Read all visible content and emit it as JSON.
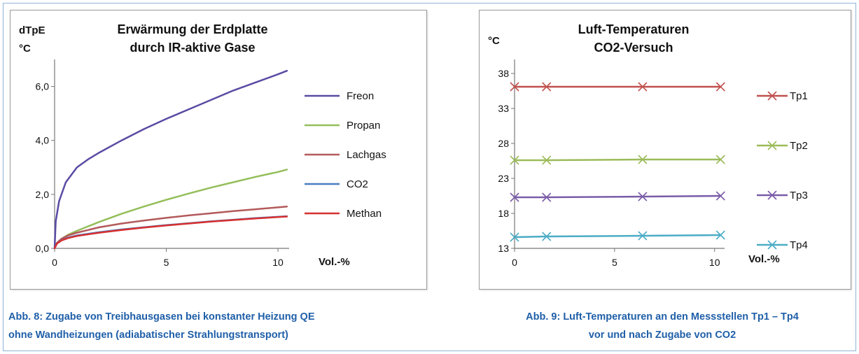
{
  "charts": [
    {
      "title_lines": [
        "Erwärmung der Erdplatte",
        "durch IR-aktive Gase"
      ],
      "ylabel_lines": [
        "dTpE",
        "°C"
      ],
      "xlabel": "Vol.-%",
      "caption_lines": [
        "Abb. 8: Zugabe von Treibhausgasen bei konstanter Heizung QE",
        "ohne Wandheizungen (adiabatischer Strahlungstransport)"
      ]
    },
    {
      "title_lines": [
        "Luft-Temperaturen",
        "CO2-Versuch"
      ],
      "ylabel_lines": [
        "°C"
      ],
      "xlabel": "Vol.-%",
      "caption_lines": [
        "Abb. 9: Luft-Temperaturen an den Messstellen Tp1 – Tp4",
        "vor und nach Zugabe von CO2"
      ]
    }
  ],
  "chart_data": [
    {
      "type": "line",
      "title": "Erwärmung der Erdplatte durch IR-aktive Gase",
      "ylabel": "dTpE °C",
      "xlabel": "Vol.-%",
      "xlim": [
        0,
        10.5
      ],
      "ylim": [
        0,
        7
      ],
      "xticks": [
        0,
        5,
        10
      ],
      "xtick_labels": [
        "0",
        "5",
        "10"
      ],
      "yticks": [
        0,
        2,
        4,
        6
      ],
      "ytick_labels": [
        "0,0",
        "2,0",
        "4,0",
        "6,0"
      ],
      "legend": "right",
      "grid": false,
      "series": [
        {
          "name": "Freon",
          "color": "#5b4aa3",
          "x": [
            0,
            0.05,
            0.2,
            0.5,
            1,
            1.5,
            2,
            3,
            4,
            5,
            6,
            7,
            8,
            9,
            10,
            10.4
          ],
          "y": [
            0,
            1.0,
            1.75,
            2.45,
            3.0,
            3.3,
            3.55,
            4.0,
            4.42,
            4.8,
            5.15,
            5.5,
            5.85,
            6.15,
            6.45,
            6.58
          ]
        },
        {
          "name": "Propan",
          "color": "#94be5a",
          "x": [
            0,
            0.1,
            0.3,
            0.6,
            1,
            2,
            3,
            4,
            5,
            6,
            7,
            8,
            9,
            10,
            10.4
          ],
          "y": [
            0,
            0.2,
            0.35,
            0.5,
            0.65,
            0.98,
            1.28,
            1.55,
            1.8,
            2.03,
            2.25,
            2.45,
            2.65,
            2.83,
            2.92
          ]
        },
        {
          "name": "Lachgas",
          "color": "#b35a5a",
          "x": [
            0,
            0.1,
            0.3,
            0.6,
            1,
            2,
            3,
            4,
            5,
            6,
            7,
            8,
            9,
            10,
            10.4
          ],
          "y": [
            0,
            0.2,
            0.35,
            0.48,
            0.58,
            0.78,
            0.92,
            1.03,
            1.13,
            1.22,
            1.3,
            1.38,
            1.45,
            1.52,
            1.55
          ]
        },
        {
          "name": "CO2",
          "color": "#4a7fc1",
          "x": [
            0,
            0.1,
            0.3,
            0.6,
            1,
            2,
            3,
            4,
            5,
            6,
            7,
            8,
            9,
            10,
            10.4
          ],
          "y": [
            0,
            0.18,
            0.3,
            0.4,
            0.48,
            0.6,
            0.7,
            0.78,
            0.86,
            0.93,
            1.0,
            1.06,
            1.12,
            1.17,
            1.19
          ]
        },
        {
          "name": "Methan",
          "color": "#d63030",
          "x": [
            0,
            0.1,
            0.3,
            0.6,
            1,
            2,
            3,
            4,
            5,
            6,
            7,
            8,
            9,
            10,
            10.4
          ],
          "y": [
            0,
            0.17,
            0.29,
            0.38,
            0.46,
            0.58,
            0.68,
            0.77,
            0.85,
            0.92,
            0.99,
            1.05,
            1.11,
            1.16,
            1.18
          ]
        }
      ]
    },
    {
      "type": "line",
      "title": "Luft-Temperaturen CO2-Versuch",
      "ylabel": "°C",
      "xlabel": "Vol.-%",
      "xlim": [
        0,
        10.5
      ],
      "ylim": [
        13,
        40
      ],
      "xticks": [
        0,
        5,
        10
      ],
      "xtick_labels": [
        "0",
        "5",
        "10"
      ],
      "yticks": [
        13,
        18,
        23,
        28,
        33,
        38
      ],
      "ytick_labels": [
        "13",
        "18",
        "23",
        "28",
        "33",
        "38"
      ],
      "legend": "right",
      "grid": false,
      "series": [
        {
          "name": "Tp1",
          "color": "#c0504d",
          "marker": "x",
          "x": [
            0,
            1.6,
            6.4,
            10.3
          ],
          "y": [
            36.1,
            36.1,
            36.1,
            36.1
          ]
        },
        {
          "name": "Tp2",
          "color": "#9bbb59",
          "marker": "x",
          "x": [
            0,
            1.6,
            6.4,
            10.3
          ],
          "y": [
            25.6,
            25.6,
            25.7,
            25.7
          ]
        },
        {
          "name": "Tp3",
          "color": "#7a5ca8",
          "marker": "x",
          "x": [
            0,
            1.6,
            6.4,
            10.3
          ],
          "y": [
            20.3,
            20.3,
            20.4,
            20.5
          ]
        },
        {
          "name": "Tp4",
          "color": "#4bacc6",
          "marker": "x",
          "x": [
            0,
            1.6,
            6.4,
            10.3
          ],
          "y": [
            14.6,
            14.7,
            14.8,
            14.9
          ]
        }
      ]
    }
  ]
}
